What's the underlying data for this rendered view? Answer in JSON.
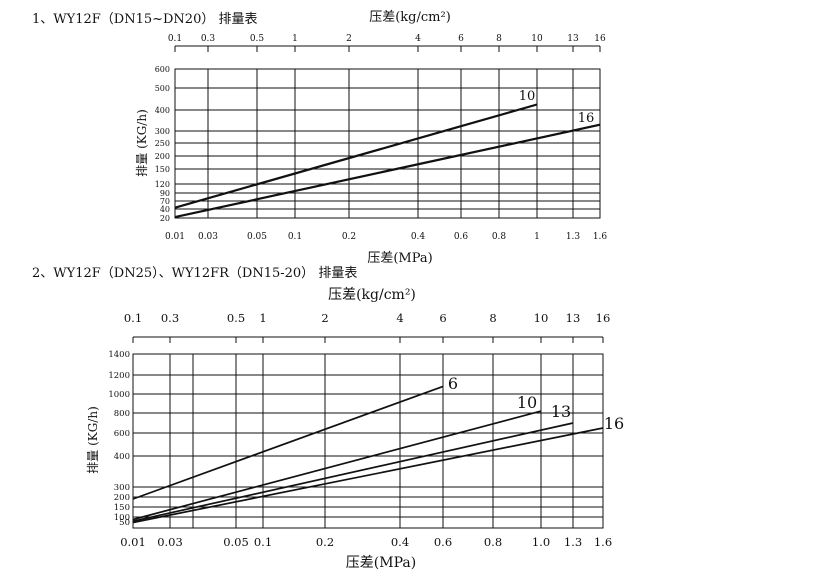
{
  "chart_data": [
    {
      "type": "line",
      "title": "1、WY12F（DN15~DN20） 排量表",
      "top_axis_label": "压差(kg/cm²)",
      "top_ticks": [
        "0.1",
        "0.3",
        "0.5",
        "1",
        "2",
        "4",
        "6",
        "8",
        "10",
        "13",
        "16"
      ],
      "xlabel": "压差(MPa)",
      "x_ticks": [
        "0.01",
        "0.03",
        "0.05",
        "0.1",
        "0.2",
        "0.4",
        "0.6",
        "0.8",
        "1",
        "1.3",
        "1.6"
      ],
      "ylabel": "排量 (KG/h)",
      "y_ticks": [
        "600",
        "500",
        "400",
        "300",
        "250",
        "200",
        "150",
        "120",
        "90",
        "70",
        "40",
        "20"
      ],
      "series": [
        {
          "name": "10",
          "x": [
            0.01,
            1.0
          ],
          "y": [
            45,
            425
          ]
        },
        {
          "name": "16",
          "x": [
            0.01,
            1.6
          ],
          "y": [
            22,
            330
          ]
        }
      ]
    },
    {
      "type": "line",
      "title": "2、WY12F（DN25）、WY12FR（DN15-20） 排量表",
      "top_axis_label": "压差(kg/cm²)",
      "top_ticks": [
        "0.1",
        "0.3",
        "0.5",
        "1",
        "2",
        "4",
        "6",
        "8",
        "10",
        "13",
        "16"
      ],
      "xlabel": "压差(MPa)",
      "x_ticks": [
        "0.01",
        "0.03",
        "0.05",
        "0.1",
        "0.2",
        "0.4",
        "0.6",
        "0.8",
        "1.0",
        "1.3",
        "1.6"
      ],
      "ylabel": "排量 (KG/h)",
      "y_ticks": [
        "1400",
        "1200",
        "1000",
        "800",
        "600",
        "400",
        "300",
        "200",
        "150",
        "100",
        "50"
      ],
      "series": [
        {
          "name": "6",
          "x": [
            0.01,
            0.6
          ],
          "y": [
            190,
            1080
          ]
        },
        {
          "name": "10",
          "x": [
            0.01,
            1.0
          ],
          "y": [
            75,
            820
          ]
        },
        {
          "name": "13",
          "x": [
            0.01,
            1.3
          ],
          "y": [
            58,
            700
          ]
        },
        {
          "name": "16",
          "x": [
            0.01,
            1.6
          ],
          "y": [
            45,
            650
          ]
        }
      ]
    }
  ]
}
